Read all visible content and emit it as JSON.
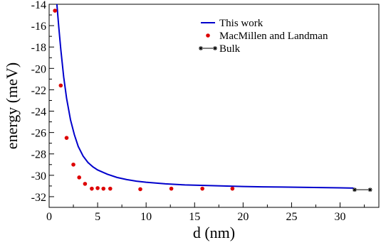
{
  "chart_data": {
    "type": "line",
    "xlabel": "d (nm)",
    "ylabel": "energy (meV)",
    "xlim": [
      0,
      34
    ],
    "ylim": [
      -33,
      -14
    ],
    "x_ticks": [
      0,
      5,
      10,
      15,
      20,
      25,
      30
    ],
    "y_ticks": [
      -32,
      -30,
      -28,
      -26,
      -24,
      -22,
      -20,
      -18,
      -16,
      -14
    ],
    "grid": false,
    "legend_position": "top-right",
    "series": [
      {
        "name": "This work",
        "style": "line",
        "color": "#0000cc",
        "x": [
          0.8,
          1.0,
          1.2,
          1.5,
          1.8,
          2.2,
          2.6,
          3.0,
          3.5,
          4.0,
          4.5,
          5.0,
          6.0,
          7.0,
          8.0,
          9.0,
          10.0,
          12.0,
          14.0,
          16.0,
          18.0,
          20.0,
          22.0,
          24.0,
          26.0,
          28.0,
          30.0,
          31.4
        ],
        "y": [
          -14.0,
          -16.2,
          -18.2,
          -20.8,
          -22.8,
          -24.8,
          -26.2,
          -27.3,
          -28.2,
          -28.8,
          -29.2,
          -29.5,
          -29.9,
          -30.2,
          -30.4,
          -30.55,
          -30.65,
          -30.8,
          -30.9,
          -30.95,
          -31.0,
          -31.05,
          -31.08,
          -31.1,
          -31.12,
          -31.15,
          -31.17,
          -31.2
        ]
      },
      {
        "name": "MacMillen and Landman",
        "style": "scatter",
        "color": "#dd0000",
        "x": [
          0.6,
          1.2,
          1.8,
          2.5,
          3.1,
          3.7,
          4.4,
          5.0,
          5.6,
          6.3,
          9.4,
          12.6,
          15.8,
          18.9
        ],
        "y": [
          -14.6,
          -21.6,
          -26.5,
          -29.0,
          -30.2,
          -30.8,
          -31.25,
          -31.2,
          -31.25,
          -31.25,
          -31.3,
          -31.25,
          -31.25,
          -31.25
        ]
      },
      {
        "name": "Bulk",
        "style": "line-marker",
        "color": "#000000",
        "x": [
          31.5,
          33.1
        ],
        "y": [
          -31.35,
          -31.35
        ]
      }
    ]
  }
}
